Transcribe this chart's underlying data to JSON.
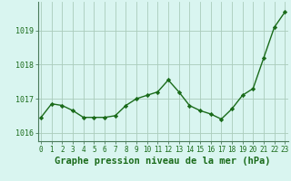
{
  "x": [
    0,
    1,
    2,
    3,
    4,
    5,
    6,
    7,
    8,
    9,
    10,
    11,
    12,
    13,
    14,
    15,
    16,
    17,
    18,
    19,
    20,
    21,
    22,
    23
  ],
  "y": [
    1016.45,
    1016.85,
    1016.8,
    1016.65,
    1016.45,
    1016.45,
    1016.45,
    1016.5,
    1016.8,
    1017.0,
    1017.1,
    1017.2,
    1017.55,
    1017.2,
    1016.8,
    1016.65,
    1016.55,
    1016.4,
    1016.7,
    1017.1,
    1017.3,
    1018.2,
    1019.1,
    1019.55
  ],
  "line_color": "#1a6b1a",
  "marker": "D",
  "marker_size": 2.2,
  "line_width": 1.0,
  "bg_color": "#d9f5f0",
  "grid_color": "#aaccbb",
  "xlabel": "Graphe pression niveau de la mer (hPa)",
  "xlabel_fontsize": 7.5,
  "xlabel_color": "#1a6b1a",
  "ytick_labels": [
    "1016",
    "1017",
    "1018",
    "1019"
  ],
  "ytick_values": [
    1016,
    1017,
    1018,
    1019
  ],
  "ylim_min": 1015.75,
  "ylim_max": 1019.85,
  "xlim_min": -0.3,
  "xlim_max": 23.3,
  "spine_color": "#4a7a5a",
  "tick_color": "#1a6b1a",
  "tick_fontsize": 6.0,
  "xtick_fontsize": 5.5
}
